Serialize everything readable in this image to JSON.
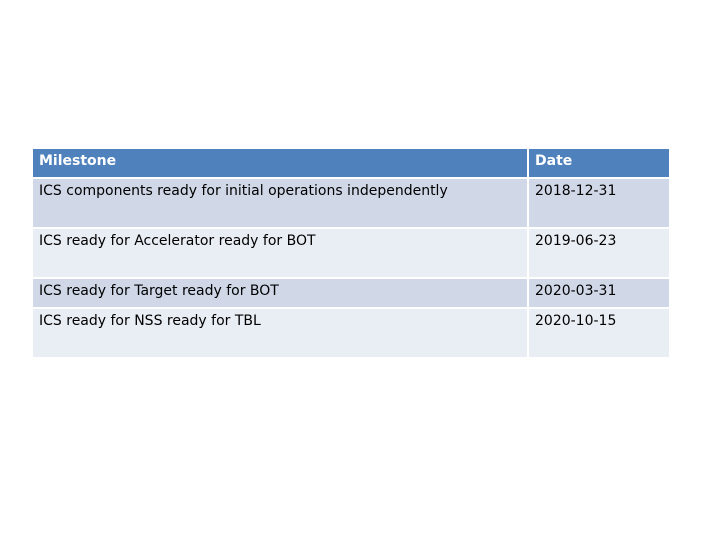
{
  "table": {
    "header": [
      "Milestone",
      "Date"
    ],
    "rows": [
      [
        "ICS components ready for initial operations independently",
        "2018-12-31"
      ],
      [
        "ICS ready for Accelerator ready for BOT",
        "2019-06-23"
      ],
      [
        "ICS ready for Target ready for BOT",
        "2020-03-31"
      ],
      [
        "ICS ready for NSS ready for TBL",
        "2020-10-15"
      ]
    ]
  }
}
